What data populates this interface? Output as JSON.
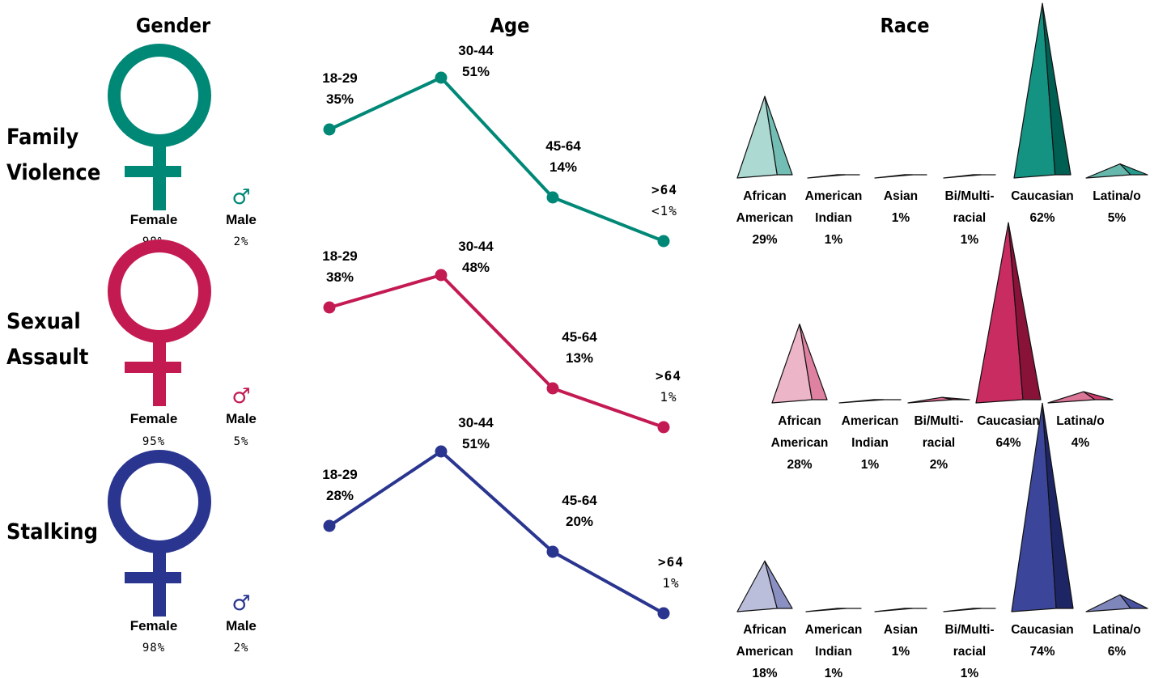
{
  "headers": {
    "gender": "Gender",
    "age": "Age",
    "race": "Race"
  },
  "rows": [
    {
      "title_lines": [
        "Family",
        "Violence"
      ],
      "color": "#008877",
      "gender": {
        "female_label": "Female",
        "female_pct": "98%",
        "male_label": "Male",
        "male_pct": "2%",
        "male_symbol": "♂"
      },
      "age": [
        {
          "label": "18-29",
          "pct": "35%"
        },
        {
          "label": "30-44",
          "pct": "51%"
        },
        {
          "label": "45-64",
          "pct": "14%"
        },
        {
          "label": ">64",
          "pct": "<1%"
        }
      ],
      "race": [
        {
          "lines": [
            "African",
            "American",
            "29%"
          ]
        },
        {
          "lines": [
            "American",
            "Indian",
            "1%"
          ]
        },
        {
          "lines": [
            "Asian",
            "1%"
          ]
        },
        {
          "lines": [
            "Bi/Multi-",
            "racial",
            "1%"
          ]
        },
        {
          "lines": [
            "Caucasian",
            "62%"
          ]
        },
        {
          "lines": [
            "Latina/o",
            "5%"
          ]
        }
      ]
    },
    {
      "title_lines": [
        "Sexual",
        "Assault"
      ],
      "color": "#c41a52",
      "gender": {
        "female_label": "Female",
        "female_pct": "95%",
        "male_label": "Male",
        "male_pct": "5%",
        "male_symbol": "♂"
      },
      "age": [
        {
          "label": "18-29",
          "pct": "38%"
        },
        {
          "label": "30-44",
          "pct": "48%"
        },
        {
          "label": "45-64",
          "pct": "13%"
        },
        {
          "label": ">64",
          "pct": "1%"
        }
      ],
      "race": [
        {
          "lines": [
            "African",
            "American",
            "28%"
          ]
        },
        {
          "lines": [
            "American",
            "Indian",
            "1%"
          ]
        },
        {
          "lines": [
            "Bi/Multi-",
            "racial",
            "2%"
          ]
        },
        {
          "lines": [
            "Caucasian",
            "64%"
          ]
        },
        {
          "lines": [
            "Latina/o",
            "4%"
          ]
        }
      ]
    },
    {
      "title_lines": [
        "Stalking"
      ],
      "color": "#2a3590",
      "gender": {
        "female_label": "Female",
        "female_pct": "98%",
        "male_label": "Male",
        "male_pct": "2%",
        "male_symbol": "♂"
      },
      "age": [
        {
          "label": "18-29",
          "pct": "28%"
        },
        {
          "label": "30-44",
          "pct": "51%"
        },
        {
          "label": "45-64",
          "pct": "20%"
        },
        {
          "label": ">64",
          "pct": "1%"
        }
      ],
      "race": [
        {
          "lines": [
            "African",
            "American",
            "18%"
          ]
        },
        {
          "lines": [
            "American",
            "Indian",
            "1%"
          ]
        },
        {
          "lines": [
            "Asian",
            "1%"
          ]
        },
        {
          "lines": [
            "Bi/Multi-",
            "racial",
            "1%"
          ]
        },
        {
          "lines": [
            "Caucasian",
            "74%"
          ]
        },
        {
          "lines": [
            "Latina/o",
            "6%"
          ]
        }
      ]
    }
  ],
  "chart_data": [
    {
      "type": "line",
      "title": "Age",
      "series": [
        {
          "name": "Family Violence",
          "x": [
            "18-29",
            "30-44",
            "45-64",
            ">64"
          ],
          "values": [
            35,
            51,
            14,
            0.5
          ]
        },
        {
          "name": "Sexual Assault",
          "x": [
            "18-29",
            "30-44",
            "45-64",
            ">64"
          ],
          "values": [
            38,
            48,
            13,
            1
          ]
        },
        {
          "name": "Stalking",
          "x": [
            "18-29",
            "30-44",
            "45-64",
            ">64"
          ],
          "values": [
            28,
            51,
            20,
            1
          ]
        }
      ]
    },
    {
      "type": "bar",
      "title": "Race",
      "series": [
        {
          "name": "Family Violence",
          "categories": [
            "African American",
            "American Indian",
            "Asian",
            "Bi/Multi-racial",
            "Caucasian",
            "Latina/o"
          ],
          "values": [
            29,
            1,
            1,
            1,
            62,
            5
          ]
        },
        {
          "name": "Sexual Assault",
          "categories": [
            "African American",
            "American Indian",
            "Bi/Multi-racial",
            "Caucasian",
            "Latina/o"
          ],
          "values": [
            28,
            1,
            2,
            64,
            4
          ]
        },
        {
          "name": "Stalking",
          "categories": [
            "African American",
            "American Indian",
            "Asian",
            "Bi/Multi-racial",
            "Caucasian",
            "Latina/o"
          ],
          "values": [
            18,
            1,
            1,
            1,
            74,
            6
          ]
        }
      ]
    },
    {
      "type": "table",
      "title": "Gender",
      "series": [
        {
          "name": "Family Violence",
          "categories": [
            "Female",
            "Male"
          ],
          "values": [
            98,
            2
          ]
        },
        {
          "name": "Sexual Assault",
          "categories": [
            "Female",
            "Male"
          ],
          "values": [
            95,
            5
          ]
        },
        {
          "name": "Stalking",
          "categories": [
            "Female",
            "Male"
          ],
          "values": [
            98,
            2
          ]
        }
      ]
    }
  ]
}
